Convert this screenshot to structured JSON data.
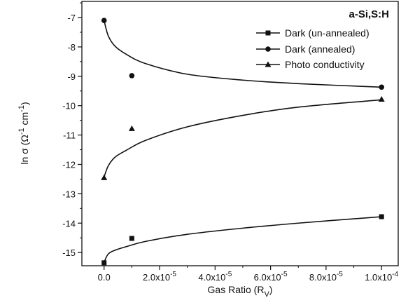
{
  "chart_data": {
    "type": "scatter",
    "title": "a-Si,S:H",
    "xlabel": {
      "base": "Gas Ratio (R",
      "sub": "V",
      "close": ")"
    },
    "ylabel": {
      "lead": "ln σ (Ω",
      "sup1": "-1",
      "mid": " cm",
      "sup2": "-1",
      "close": ")"
    },
    "xlim": [
      -8e-06,
      0.000106
    ],
    "ylim": [
      -15.45,
      -6.45
    ],
    "x_ticks": [
      {
        "value": 0,
        "mantissa": "0.0",
        "exp": ""
      },
      {
        "value": 2e-05,
        "mantissa": "2.0x10",
        "exp": "-5"
      },
      {
        "value": 4e-05,
        "mantissa": "4.0x10",
        "exp": "-5"
      },
      {
        "value": 6e-05,
        "mantissa": "6.0x10",
        "exp": "-5"
      },
      {
        "value": 8e-05,
        "mantissa": "8.0x10",
        "exp": "-5"
      },
      {
        "value": 0.0001,
        "mantissa": "1.0x10",
        "exp": "-4"
      }
    ],
    "y_ticks": [
      {
        "value": -7,
        "label": "-7"
      },
      {
        "value": -8,
        "label": "-8"
      },
      {
        "value": -9,
        "label": "-9"
      },
      {
        "value": -10,
        "label": "-10"
      },
      {
        "value": -11,
        "label": "-11"
      },
      {
        "value": -12,
        "label": "-12"
      },
      {
        "value": -13,
        "label": "-13"
      },
      {
        "value": -14,
        "label": "-14"
      },
      {
        "value": -15,
        "label": "-15"
      }
    ],
    "legend_position": "top-right",
    "series": [
      {
        "name": "Dark (un-annealed)",
        "marker": "square",
        "x": [
          0,
          1e-05,
          0.0001
        ],
        "y": [
          -15.35,
          -14.52,
          -13.78
        ],
        "fit": [
          [
            0,
            -15.33
          ],
          [
            1.5e-06,
            -15.05
          ],
          [
            4e-06,
            -14.92
          ],
          [
            8e-06,
            -14.8
          ],
          [
            1.5e-05,
            -14.62
          ],
          [
            3e-05,
            -14.38
          ],
          [
            5e-05,
            -14.17
          ],
          [
            7e-05,
            -14.0
          ],
          [
            0.0001,
            -13.78
          ]
        ]
      },
      {
        "name": "Dark (annealed)",
        "marker": "circle",
        "x": [
          0,
          1e-05,
          0.0001
        ],
        "y": [
          -7.1,
          -8.98,
          -9.37
        ],
        "fit": [
          [
            0,
            -7.1
          ],
          [
            1.5e-06,
            -7.62
          ],
          [
            4e-06,
            -7.98
          ],
          [
            8e-06,
            -8.25
          ],
          [
            1.5e-05,
            -8.57
          ],
          [
            3e-05,
            -8.93
          ],
          [
            5e-05,
            -9.13
          ],
          [
            7e-05,
            -9.25
          ],
          [
            0.0001,
            -9.37
          ]
        ]
      },
      {
        "name": "Photo conductivity",
        "marker": "triangle",
        "x": [
          0,
          1e-05,
          0.0001
        ],
        "y": [
          -12.45,
          -10.78,
          -9.78
        ],
        "fit": [
          [
            0,
            -12.43
          ],
          [
            1.5e-06,
            -12.05
          ],
          [
            4e-06,
            -11.75
          ],
          [
            8e-06,
            -11.52
          ],
          [
            1.5e-05,
            -11.18
          ],
          [
            3e-05,
            -10.72
          ],
          [
            5e-05,
            -10.33
          ],
          [
            7e-05,
            -10.05
          ],
          [
            0.0001,
            -9.8
          ]
        ]
      }
    ]
  }
}
